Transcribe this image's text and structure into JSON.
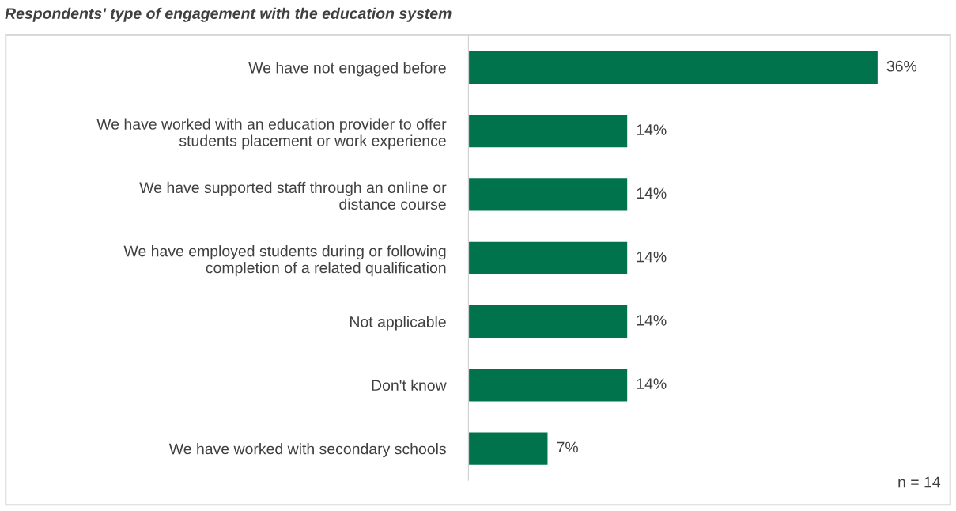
{
  "chart_data": {
    "type": "bar",
    "orientation": "horizontal",
    "title": "Respondents' type of engagement with the education system",
    "categories": [
      "We have not engaged before",
      "We have worked with an education provider to offer\nstudents placement or work experience",
      "We have supported staff through an online or\ndistance course",
      "We have employed students during or following\ncompletion of a related qualification",
      "Not applicable",
      "Don't know",
      "We have worked with secondary schools"
    ],
    "values": [
      36,
      14,
      14,
      14,
      14,
      14,
      7
    ],
    "value_labels": [
      "36%",
      "14%",
      "14%",
      "14%",
      "14%",
      "14%",
      "7%"
    ],
    "color": "#00734c",
    "annotations": [
      "n = 14"
    ],
    "grid": false,
    "legend": false
  }
}
